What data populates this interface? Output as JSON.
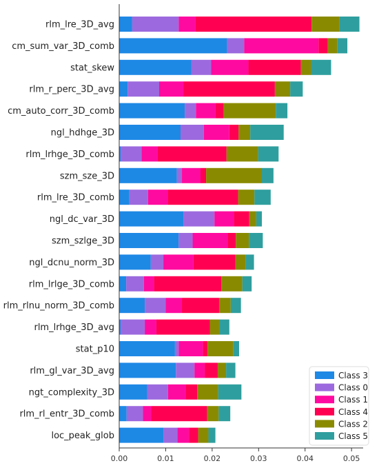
{
  "chart_data": {
    "type": "bar",
    "orientation": "horizontal",
    "stacked": true,
    "categories": [
      "rlm_lre_3D_avg",
      "cm_sum_var_3D_comb",
      "stat_skew",
      "rlm_r_perc_3D_avg",
      "cm_auto_corr_3D_comb",
      "ngl_hdhge_3D",
      "rlm_lrhge_3D_comb",
      "szm_sze_3D",
      "rlm_lre_3D_comb",
      "ngl_dc_var_3D",
      "szm_szlge_3D",
      "ngl_dcnu_norm_3D",
      "rlm_lrlge_3D_comb",
      "rlm_rlnu_norm_3D_comb",
      "rlm_lrhge_3D_avg",
      "stat_p10",
      "rlm_gl_var_3D_avg",
      "ngt_complexity_3D",
      "rlm_rl_entr_3D_comb",
      "loc_peak_glob"
    ],
    "series": [
      {
        "name": "Class 3",
        "color": "#1E88E5",
        "values": [
          0.0028,
          0.0232,
          0.0155,
          0.0018,
          0.0141,
          0.0132,
          0.0003,
          0.0124,
          0.0022,
          0.0138,
          0.0128,
          0.0068,
          0.0015,
          0.0055,
          0.0003,
          0.012,
          0.0122,
          0.006,
          0.0016,
          0.0095
        ]
      },
      {
        "name": "Class 0",
        "color": "#9C6ADE",
        "values": [
          0.01,
          0.0037,
          0.0043,
          0.0068,
          0.0024,
          0.005,
          0.0045,
          0.0011,
          0.004,
          0.0067,
          0.003,
          0.0027,
          0.0038,
          0.0045,
          0.0052,
          0.0008,
          0.004,
          0.0045,
          0.0035,
          0.003
        ]
      },
      {
        "name": "Class 1",
        "color": "#FF0AA0",
        "values": [
          0.0036,
          0.016,
          0.008,
          0.0052,
          0.0042,
          0.0055,
          0.0035,
          0.004,
          0.0042,
          0.0042,
          0.0075,
          0.0065,
          0.0022,
          0.0035,
          0.0025,
          0.0052,
          0.0022,
          0.0038,
          0.0018,
          0.0025
        ]
      },
      {
        "name": "Class 4",
        "color": "#FF0052",
        "values": [
          0.025,
          0.002,
          0.0113,
          0.0197,
          0.0018,
          0.002,
          0.0148,
          0.0012,
          0.0152,
          0.0033,
          0.0018,
          0.009,
          0.0145,
          0.008,
          0.0115,
          0.001,
          0.0028,
          0.0025,
          0.012,
          0.002
        ]
      },
      {
        "name": "Class 2",
        "color": "#8A8A00",
        "values": [
          0.006,
          0.002,
          0.0022,
          0.0033,
          0.0112,
          0.0025,
          0.0068,
          0.012,
          0.0035,
          0.0015,
          0.0028,
          0.0022,
          0.0045,
          0.0025,
          0.002,
          0.0055,
          0.0018,
          0.0045,
          0.0025,
          0.0022
        ]
      },
      {
        "name": "Class 5",
        "color": "#2F9E9E",
        "values": [
          0.0043,
          0.0022,
          0.0043,
          0.0027,
          0.0025,
          0.0072,
          0.0044,
          0.0025,
          0.0035,
          0.0012,
          0.003,
          0.0018,
          0.002,
          0.0022,
          0.0022,
          0.0013,
          0.002,
          0.005,
          0.0025,
          0.0015
        ]
      }
    ],
    "xlim": [
      0,
      0.0525
    ],
    "xticks": [
      "0.00",
      "0.01",
      "0.02",
      "0.03",
      "0.04",
      "0.05"
    ],
    "legend": {
      "placement": "bottom-right"
    },
    "grid": false
  }
}
